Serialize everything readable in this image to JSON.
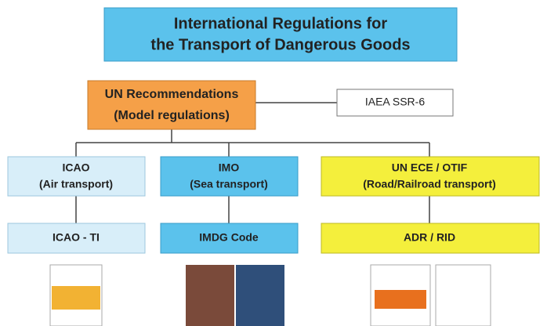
{
  "title": [
    "International Regulations for",
    "the Transport of Dangerous Goods"
  ],
  "root": [
    "UN Recommendations",
    "(Model regulations)"
  ],
  "side": "IAEA SSR-6",
  "branches": [
    {
      "name": "ICAO",
      "mode": "(Air transport)",
      "document": "ICAO - TI"
    },
    {
      "name": "IMO",
      "mode": "(Sea transport)",
      "document": "IMDG Code"
    },
    {
      "name": "UN ECE / OTIF",
      "mode": "(Road/Railroad transport)",
      "document": "ADR / RID"
    }
  ]
}
